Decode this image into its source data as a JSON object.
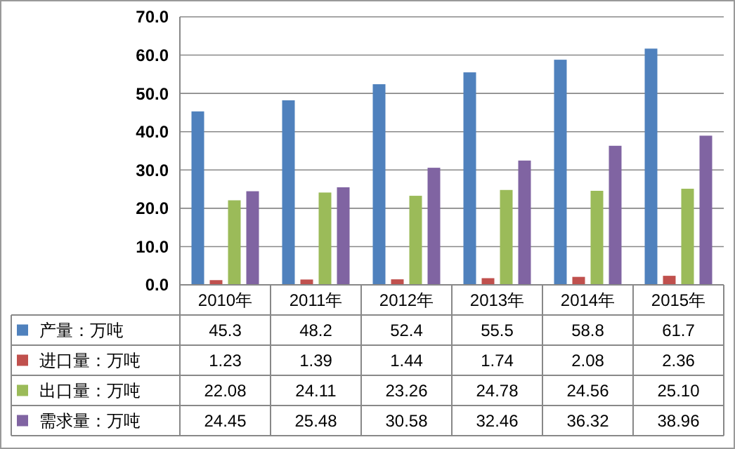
{
  "chart_data": {
    "type": "bar",
    "categories": [
      "2010年",
      "2011年",
      "2012年",
      "2013年",
      "2014年",
      "2015年"
    ],
    "ylim": [
      0,
      70
    ],
    "yticks": [
      {
        "value": 0,
        "label": "0.0"
      },
      {
        "value": 10,
        "label": "10.0"
      },
      {
        "value": 20,
        "label": "20.0"
      },
      {
        "value": 30,
        "label": "30.0"
      },
      {
        "value": 40,
        "label": "40.0"
      },
      {
        "value": 50,
        "label": "50.0"
      },
      {
        "value": 60,
        "label": "60.0"
      },
      {
        "value": 70,
        "label": "70.0"
      }
    ],
    "grid": "y",
    "legend": "left",
    "series": [
      {
        "name": "产量：万吨",
        "color": "#4f81bd",
        "values": [
          45.3,
          48.2,
          52.4,
          55.5,
          58.8,
          61.7
        ],
        "value_labels": [
          "45.3",
          "48.2",
          "52.4",
          "55.5",
          "58.8",
          "61.7"
        ]
      },
      {
        "name": "进口量：万吨",
        "color": "#c0504d",
        "values": [
          1.23,
          1.39,
          1.44,
          1.74,
          2.08,
          2.36
        ],
        "value_labels": [
          "1.23",
          "1.39",
          "1.44",
          "1.74",
          "2.08",
          "2.36"
        ]
      },
      {
        "name": "出口量：万吨",
        "color": "#9bbb59",
        "values": [
          22.08,
          24.11,
          23.26,
          24.78,
          24.56,
          25.1
        ],
        "value_labels": [
          "22.08",
          "24.11",
          "23.26",
          "24.78",
          "24.56",
          "25.10"
        ]
      },
      {
        "name": "需求量：万吨",
        "color": "#8064a2",
        "values": [
          24.45,
          25.48,
          30.58,
          32.46,
          36.32,
          38.96
        ],
        "value_labels": [
          "24.45",
          "25.48",
          "30.58",
          "32.46",
          "36.32",
          "38.96"
        ]
      }
    ]
  }
}
